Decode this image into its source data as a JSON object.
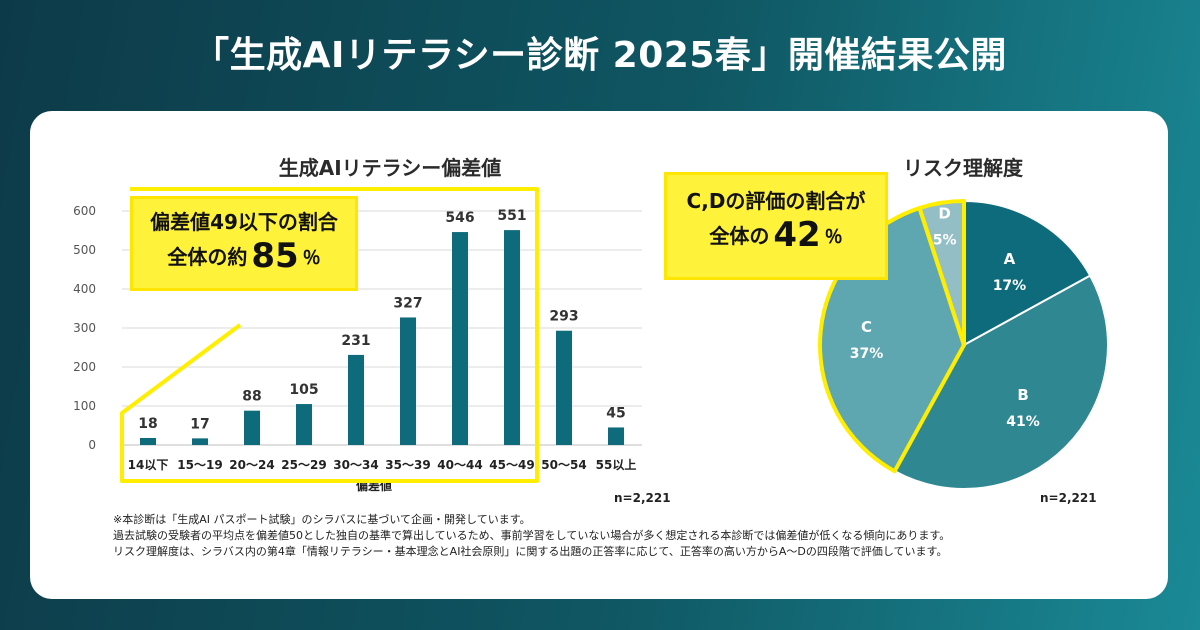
{
  "headline": "「生成AIリテラシー診断 2025春」開催結果公開",
  "bar_callout": {
    "line1": "偏差値49以下の割合",
    "line2_prefix": "全体の約",
    "value": "85",
    "unit": "％"
  },
  "pie_callout": {
    "line1": "C,Dの評価の割合が",
    "line2_prefix": "全体の",
    "value": "42",
    "unit": "％"
  },
  "bar_n": "n=2,221",
  "pie_n": "n=2,221",
  "footnotes": [
    "※本診断は「生成AI パスポート試験」のシラバスに基づいて企画・開発しています。",
    "過去試験の受験者の平均点を偏差値50とした独自の基準で算出しているため、事前学習をしていない場合が多く想定される本診断では偏差値が低くなる傾向にあります。",
    "リスク理解度は、シラバス内の第4章「情報リテラシー・基本理念とAI社会原則」に関する出題の正答率に応じて、正答率の高い方からA〜Dの四段階で評価しています。"
  ],
  "colors": {
    "bar": "#0e6b7b",
    "highlight": "#ffee00",
    "pieA": "#0e6b7b",
    "pieB": "#2f8792",
    "pieC": "#5ea6b0",
    "pieD": "#93bec5"
  },
  "chart_data": [
    {
      "type": "bar",
      "title": "生成AIリテラシー偏差値",
      "xlabel": "偏差値",
      "ylabel": "",
      "categories": [
        "14以下",
        "15〜19",
        "20〜24",
        "25〜29",
        "30〜34",
        "35〜39",
        "40〜44",
        "45〜49",
        "50〜54",
        "55以上"
      ],
      "values": [
        18,
        17,
        88,
        105,
        231,
        327,
        546,
        551,
        293,
        45
      ],
      "ylim": [
        0,
        600
      ],
      "yticks": [
        0,
        100,
        200,
        300,
        400,
        500,
        600
      ],
      "grid": true
    },
    {
      "type": "pie",
      "title": "リスク理解度",
      "labels": [
        "A",
        "B",
        "C",
        "D"
      ],
      "values": [
        17,
        41,
        37,
        5
      ],
      "value_labels": [
        "17%",
        "41%",
        "37%",
        "5%"
      ]
    }
  ]
}
